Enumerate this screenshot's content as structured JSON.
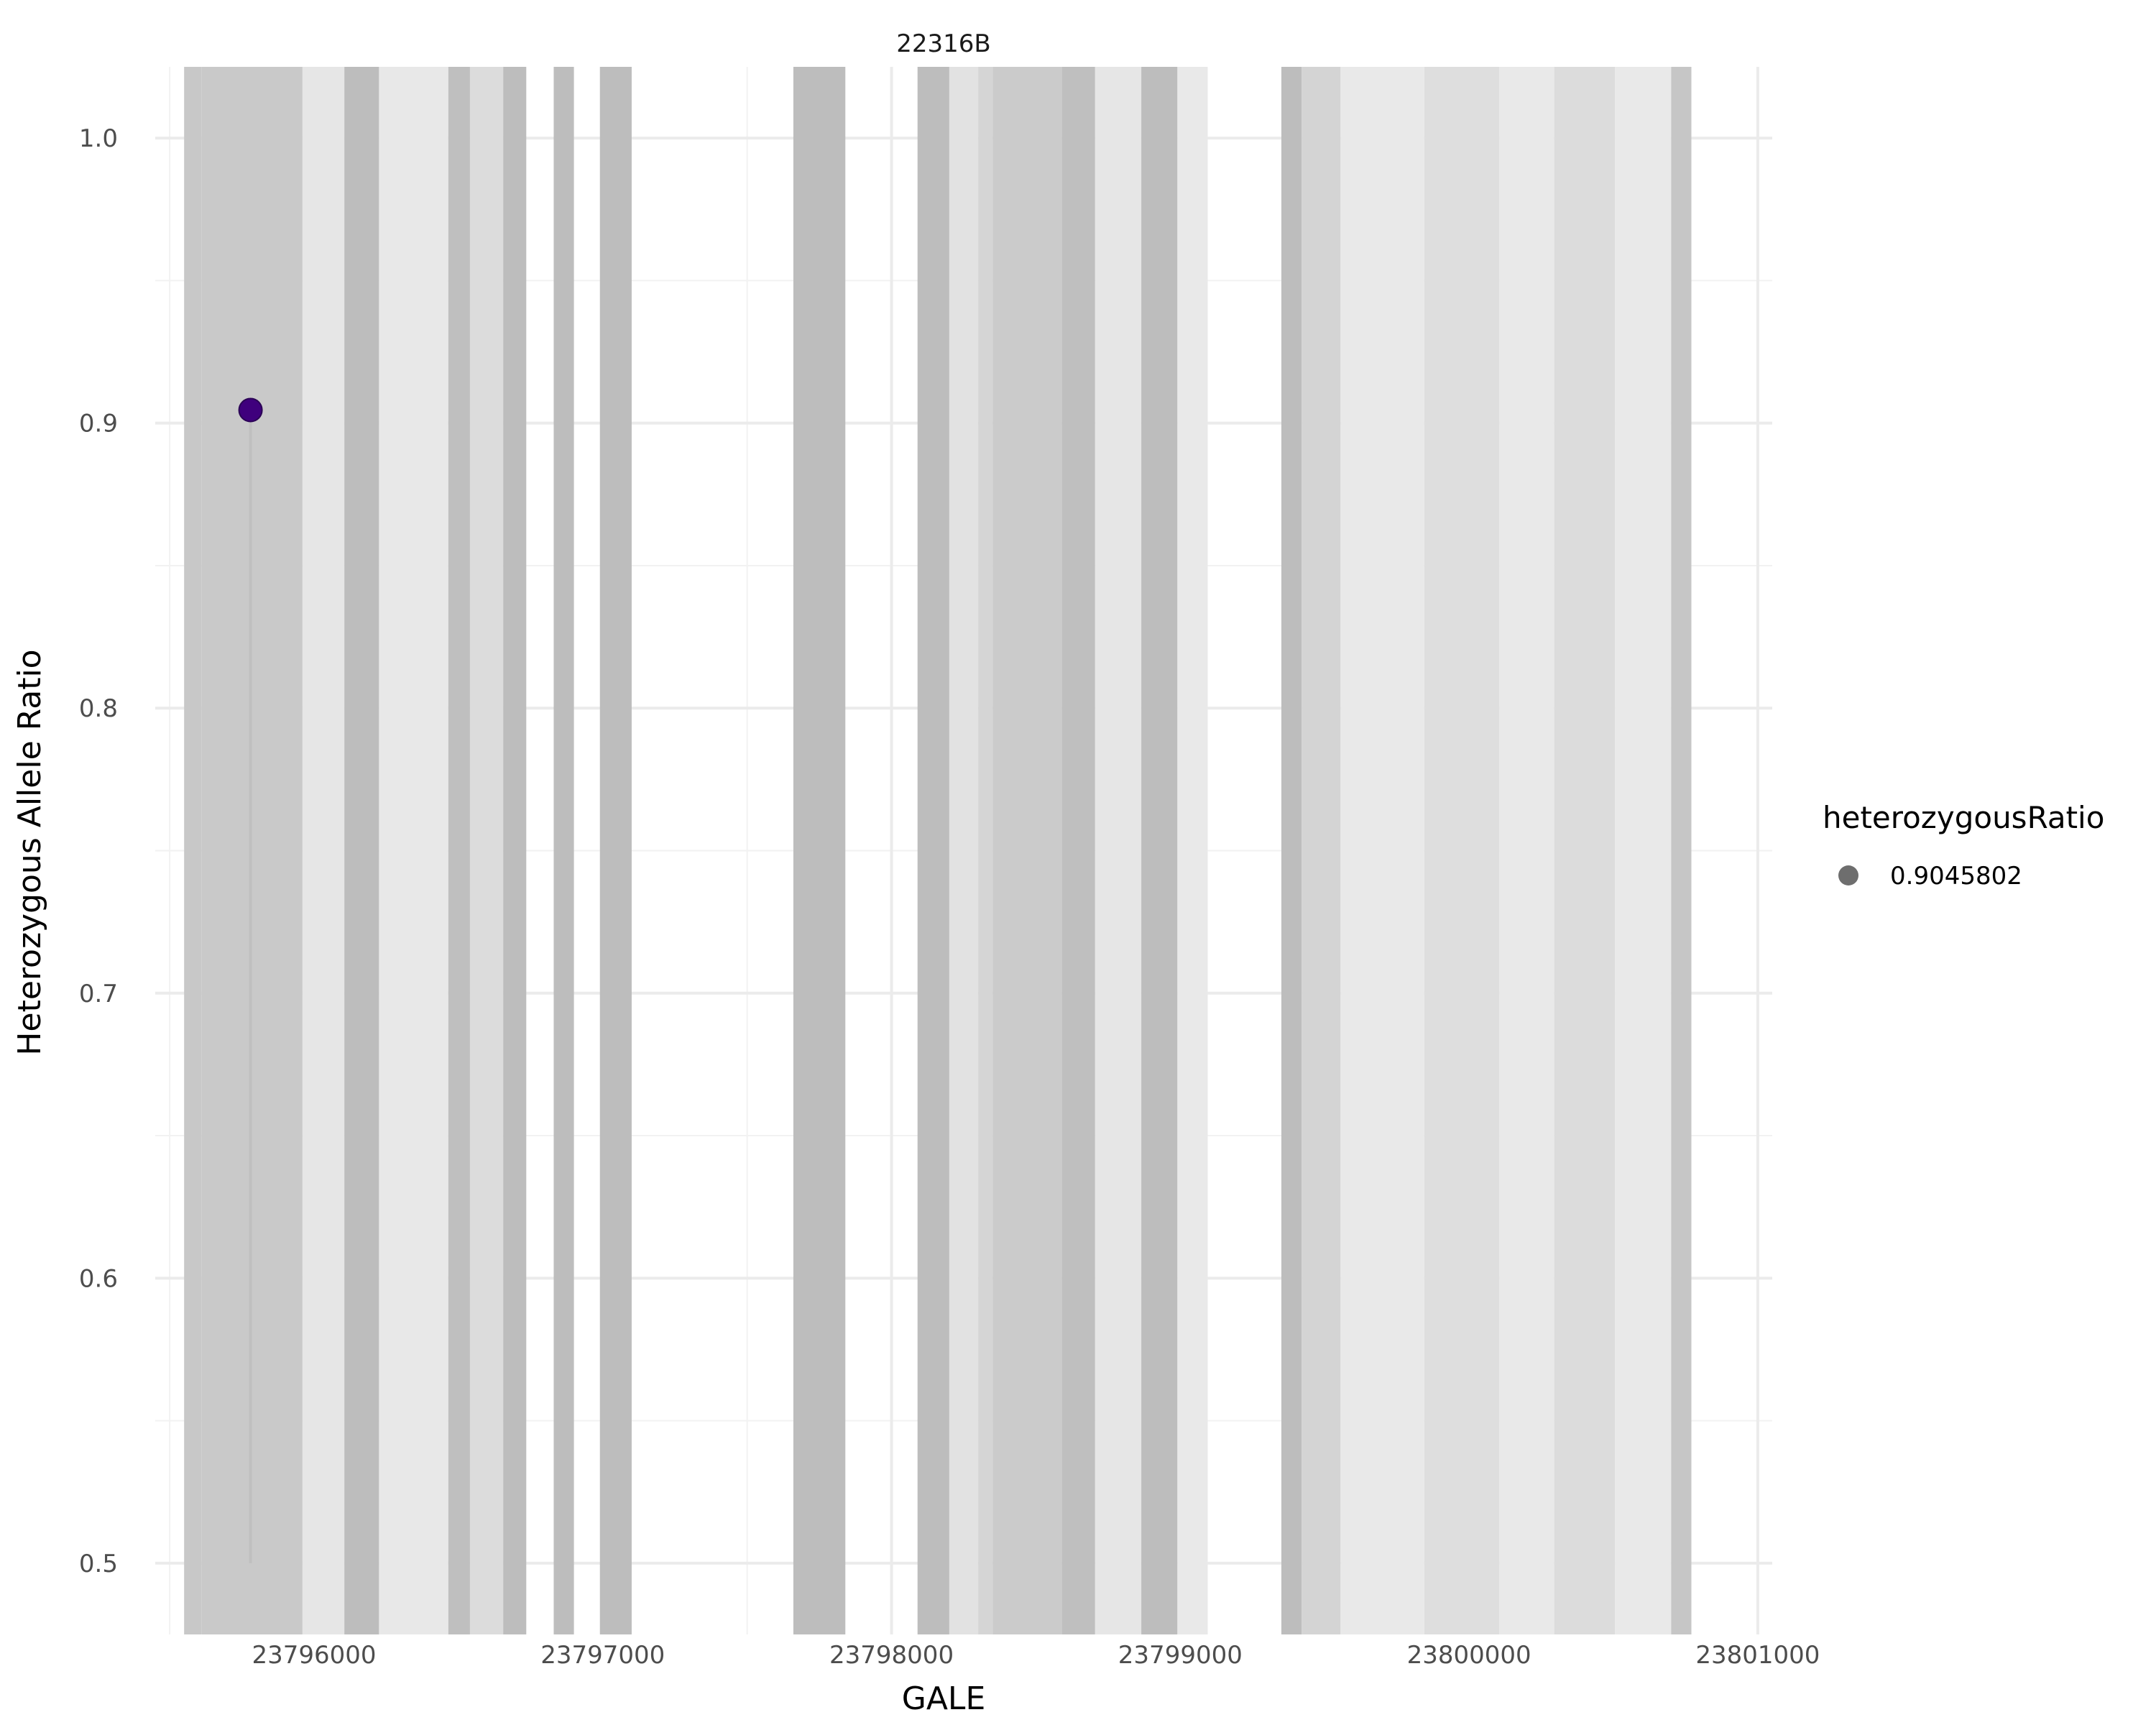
{
  "chart_data": {
    "type": "scatter",
    "title": "22316B",
    "xlabel": "GALE",
    "ylabel": "Heterozygous Allele Ratio",
    "xlim": [
      23795450,
      23801050
    ],
    "ylim": [
      0.475,
      1.025
    ],
    "x_ticks": [
      23796000,
      23797000,
      23798000,
      23799000,
      23800000,
      23801000
    ],
    "x_tick_labels": [
      "23796000",
      "23797000",
      "23798000",
      "23799000",
      "23800000",
      "23801000"
    ],
    "y_ticks": [
      0.5,
      0.6,
      0.7,
      0.8,
      0.9,
      1.0
    ],
    "y_tick_labels": [
      "0.5",
      "0.6",
      "0.7",
      "0.8",
      "0.9",
      "1.0"
    ],
    "grid": true,
    "legend": {
      "title": "heterozygousRatio",
      "position": "right",
      "entries": [
        {
          "label": "0.9045802",
          "color": "#555555"
        }
      ]
    },
    "regions": [
      {
        "start": 23795550,
        "end": 23795610,
        "shade": "#c8c8c8"
      },
      {
        "start": 23795610,
        "end": 23795960,
        "shade": "#c9c9c9"
      },
      {
        "start": 23795960,
        "end": 23796105,
        "shade": "#e6e6e6"
      },
      {
        "start": 23796105,
        "end": 23796225,
        "shade": "#bdbdbd"
      },
      {
        "start": 23796225,
        "end": 23796465,
        "shade": "#e8e8e8"
      },
      {
        "start": 23796465,
        "end": 23796540,
        "shade": "#bfbfbf"
      },
      {
        "start": 23796540,
        "end": 23796655,
        "shade": "#dcdcdc"
      },
      {
        "start": 23796655,
        "end": 23796735,
        "shade": "#bdbdbd"
      },
      {
        "start": 23796830,
        "end": 23796900,
        "shade": "#bdbdbd"
      },
      {
        "start": 23796990,
        "end": 23797100,
        "shade": "#bdbdbd"
      },
      {
        "start": 23797660,
        "end": 23797840,
        "shade": "#bdbdbd"
      },
      {
        "start": 23798090,
        "end": 23798200,
        "shade": "#bdbdbd"
      },
      {
        "start": 23798200,
        "end": 23798300,
        "shade": "#e2e2e2"
      },
      {
        "start": 23798300,
        "end": 23798350,
        "shade": "#d5d5d5"
      },
      {
        "start": 23798350,
        "end": 23798590,
        "shade": "#cbcbcb"
      },
      {
        "start": 23798590,
        "end": 23798705,
        "shade": "#bfbfbf"
      },
      {
        "start": 23798705,
        "end": 23798865,
        "shade": "#e6e6e6"
      },
      {
        "start": 23798865,
        "end": 23798990,
        "shade": "#bdbdbd"
      },
      {
        "start": 23798990,
        "end": 23799095,
        "shade": "#e9e9e9"
      },
      {
        "start": 23799350,
        "end": 23799420,
        "shade": "#bdbdbd"
      },
      {
        "start": 23799420,
        "end": 23799555,
        "shade": "#d4d4d4"
      },
      {
        "start": 23799555,
        "end": 23799845,
        "shade": "#e9e9e9"
      },
      {
        "start": 23799845,
        "end": 23800105,
        "shade": "#dedede"
      },
      {
        "start": 23800105,
        "end": 23800295,
        "shade": "#e9e9e9"
      },
      {
        "start": 23800295,
        "end": 23800505,
        "shade": "#dcdcdc"
      },
      {
        "start": 23800505,
        "end": 23800700,
        "shade": "#e9e9e9"
      },
      {
        "start": 23800700,
        "end": 23800770,
        "shade": "#c6c6c6"
      }
    ],
    "points": [
      {
        "x": 23795780,
        "y": 0.9045802,
        "ymin": 0.5,
        "color": "#3f007d"
      }
    ]
  }
}
